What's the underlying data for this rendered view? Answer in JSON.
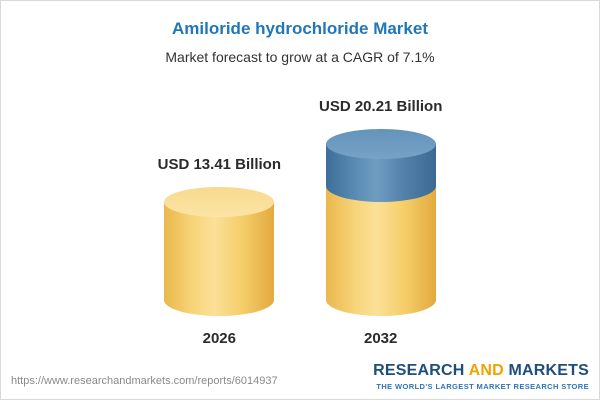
{
  "header": {
    "title": "Amiloride hydrochloride Market",
    "subtitle": "Market forecast to grow at a CAGR of 7.1%"
  },
  "chart_data": {
    "type": "bar",
    "bar_style": "cylinder",
    "title": "Amiloride hydrochloride Market",
    "subtitle": "Market forecast to grow at a CAGR of 7.1%",
    "categories": [
      "2026",
      "2032"
    ],
    "values": [
      13.41,
      20.21
    ],
    "data_labels": [
      "USD 13.41 Billion",
      "USD 20.21 Billion"
    ],
    "unit": "USD Billion",
    "cagr": "7.1%",
    "ylim": [
      0,
      21
    ],
    "grid": false,
    "legend_position": "none",
    "colors": {
      "bar_2026": "#f5ce6d",
      "bar_2032_base": "#f5ce6d",
      "bar_2032_growth": "#4d80ab"
    }
  },
  "footer": {
    "url": "https://www.researchandmarkets.com/reports/6014937",
    "logo": {
      "research": "RESEARCH",
      "and": "AND",
      "markets": "MARKETS",
      "tagline": "THE WORLD'S LARGEST MARKET RESEARCH STORE"
    }
  },
  "colors": {
    "title-blue": "#2177b8",
    "text-dark": "#333333",
    "navy": "#1e4e79",
    "orange": "#f0a202",
    "tagline-blue": "#2e75b6"
  }
}
